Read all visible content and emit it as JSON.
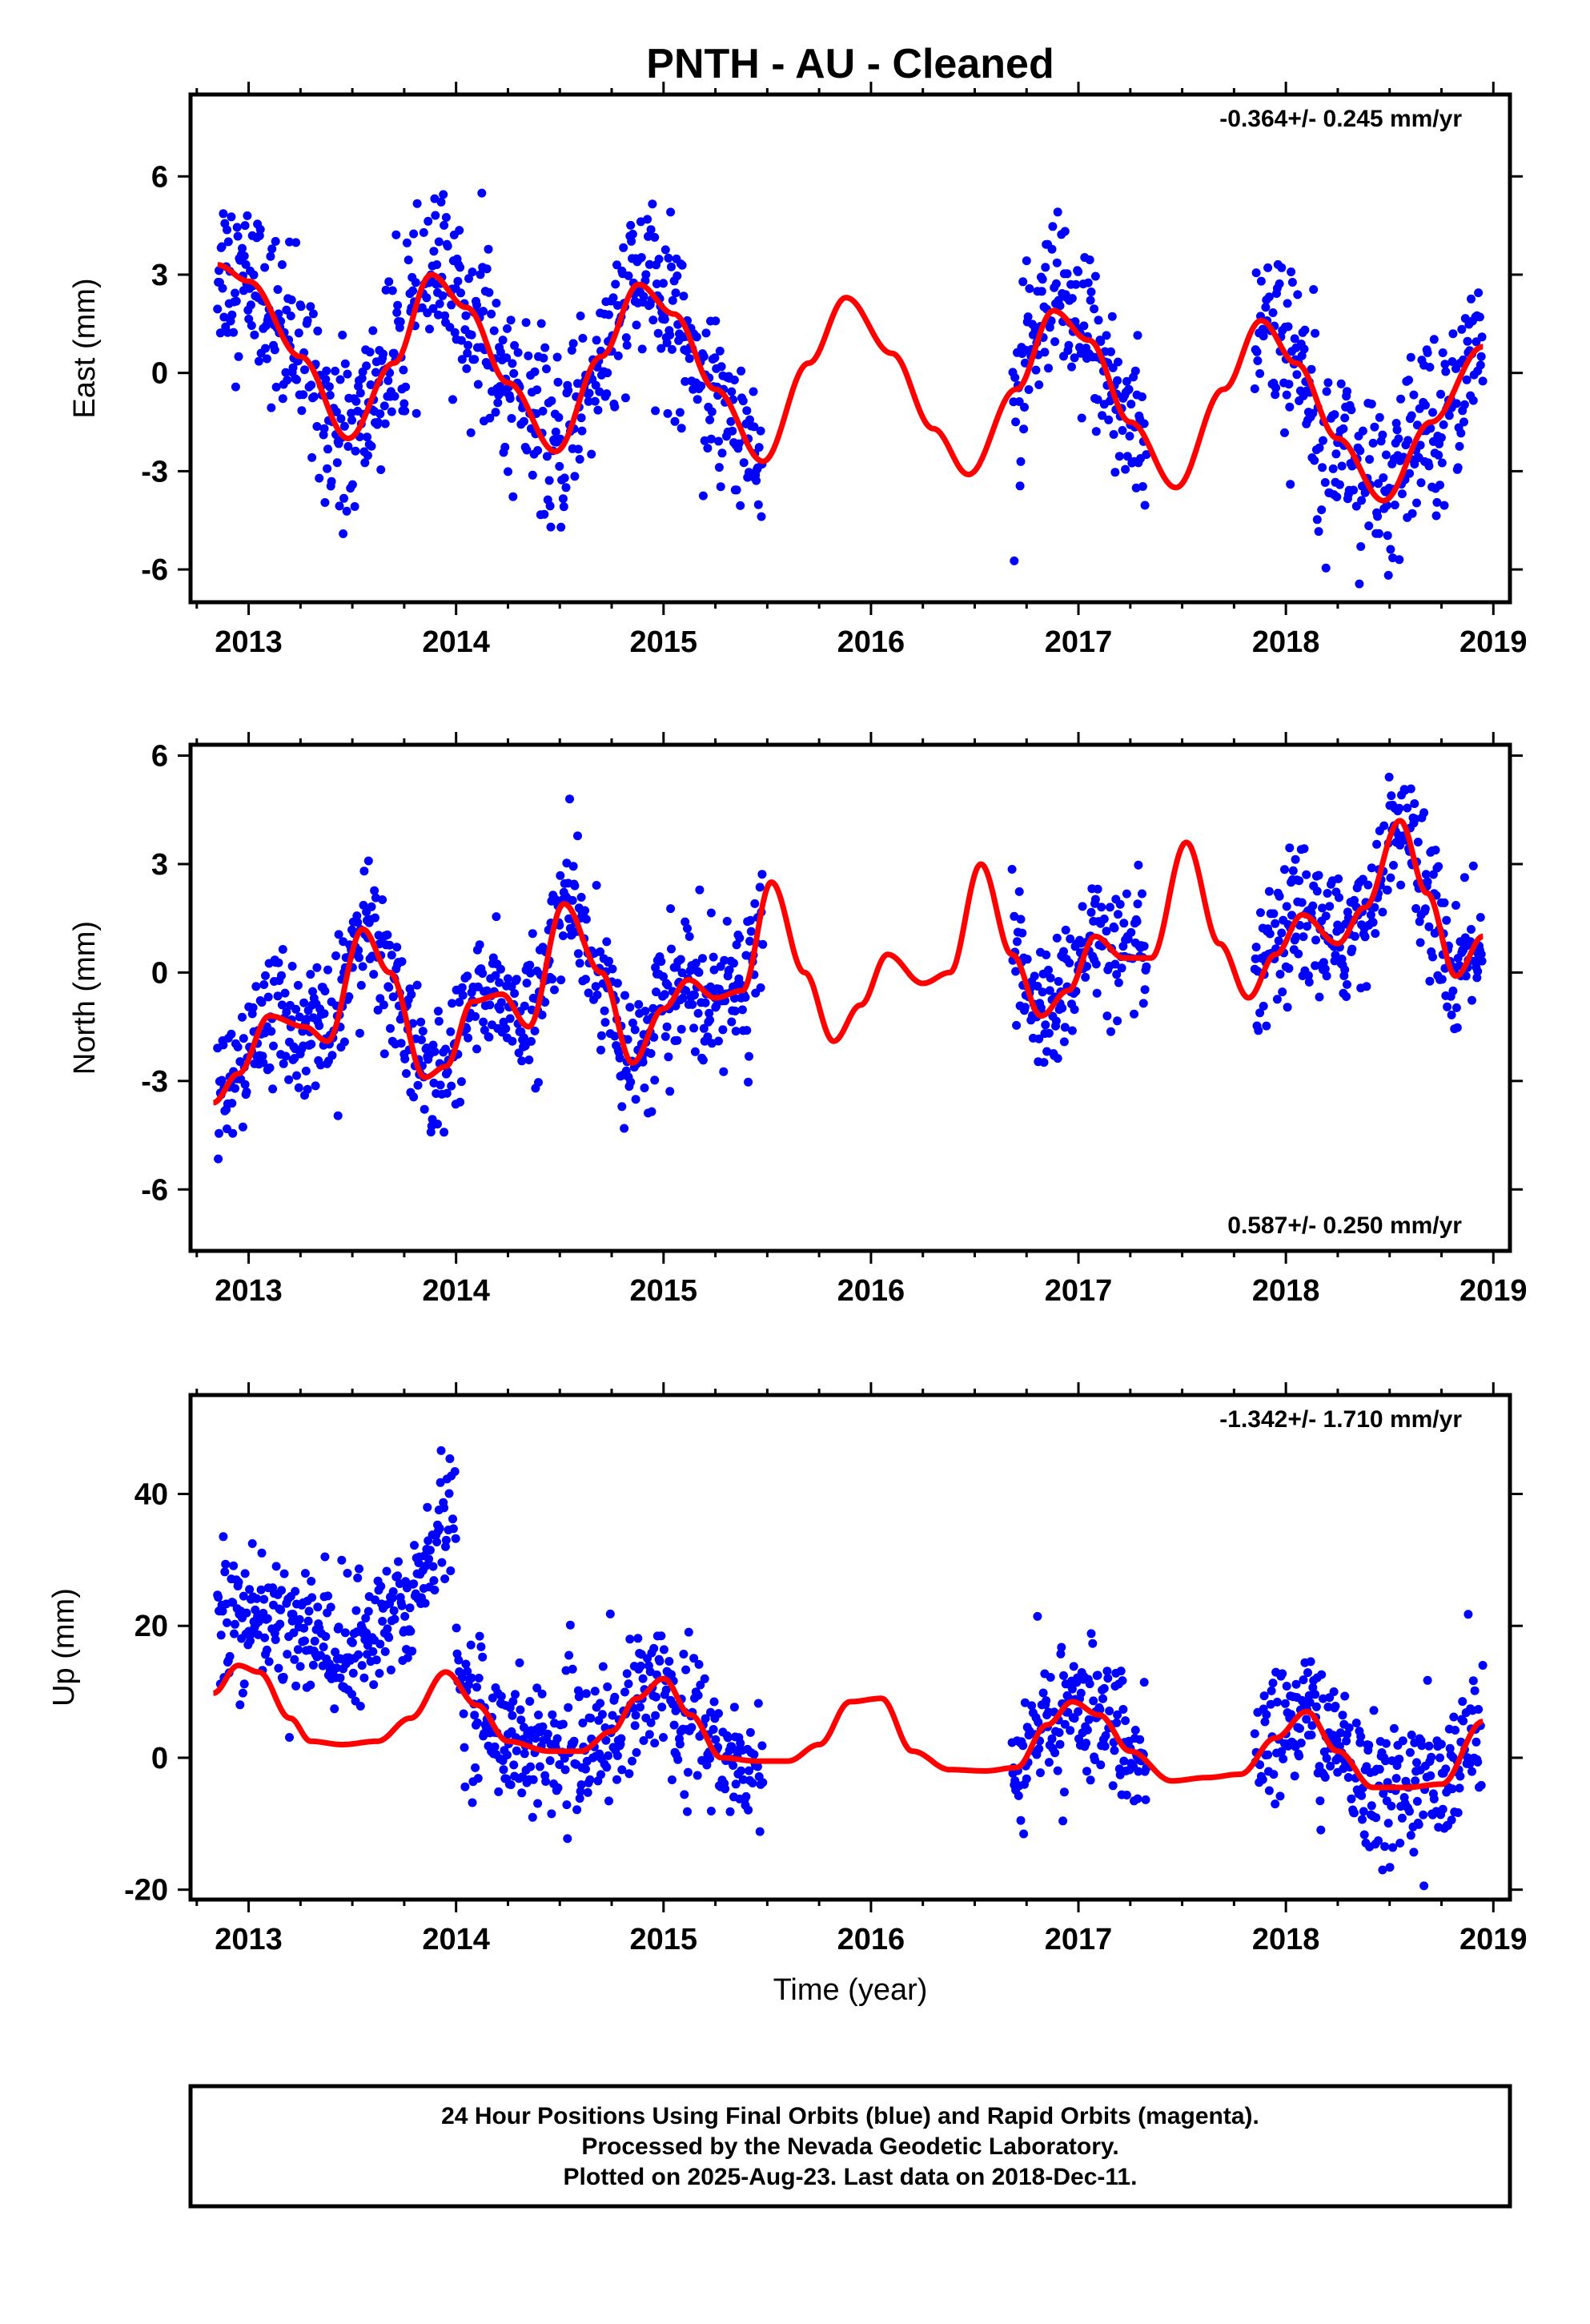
{
  "title": "PNTH  - AU - Cleaned",
  "xlabel": "Time (year)",
  "footer": {
    "line1": "24 Hour Positions Using Final Orbits (blue) and Rapid Orbits (magenta).",
    "line2": "Processed by the Nevada Geodetic Laboratory.",
    "line3": "Plotted on 2025-Aug-23. Last data on 2018-Dec-11."
  },
  "colors": {
    "points": "#0000ff",
    "fit": "#ff0000",
    "frame": "#000000"
  },
  "chart_data": [
    {
      "type": "scatter",
      "name": "east",
      "ylabel": "East (mm)",
      "rate_text": "-0.364+/- 0.245 mm/yr",
      "rate_position": "top-right",
      "xlim": [
        2012.72,
        2019.08
      ],
      "ylim": [
        -7.0,
        8.5
      ],
      "xticks": [
        "2013",
        "2014",
        "2015",
        "2016",
        "2017",
        "2018",
        "2019"
      ],
      "yticks": [
        "-6",
        "-3",
        "0",
        "3",
        "6"
      ],
      "ytick_values": [
        -6,
        -3,
        0,
        3,
        6
      ],
      "data_segments": [
        [
          2012.85,
          2015.48
        ],
        [
          2016.68,
          2017.33
        ],
        [
          2017.85,
          2018.95
        ]
      ],
      "scatter_sigma": 1.3,
      "fit_x": [
        2012.85,
        2013.0,
        2013.25,
        2013.48,
        2013.7,
        2013.88,
        2014.05,
        2014.25,
        2014.48,
        2014.7,
        2014.88,
        2015.05,
        2015.25,
        2015.48,
        2015.7,
        2015.88,
        2016.1,
        2016.3,
        2016.47,
        2016.7,
        2016.88,
        2017.05,
        2017.25,
        2017.47,
        2017.7,
        2017.88,
        2018.05,
        2018.25,
        2018.47,
        2018.7,
        2018.95
      ],
      "fit_y": [
        3.3,
        2.8,
        0.5,
        -2.0,
        0.3,
        3.0,
        2.0,
        -0.3,
        -2.4,
        0.5,
        2.7,
        1.8,
        -0.5,
        -2.7,
        0.3,
        2.3,
        0.6,
        -1.7,
        -3.1,
        -0.5,
        1.9,
        1.0,
        -1.5,
        -3.5,
        -0.5,
        1.6,
        0.3,
        -2.0,
        -3.9,
        -1.5,
        0.8
      ]
    },
    {
      "type": "scatter",
      "name": "north",
      "ylabel": "North (mm)",
      "rate_text": "0.587+/- 0.250 mm/yr",
      "rate_position": "bottom-right",
      "xlim": [
        2012.72,
        2019.08
      ],
      "ylim": [
        -7.7,
        6.3
      ],
      "xticks": [
        "2013",
        "2014",
        "2015",
        "2016",
        "2017",
        "2018",
        "2019"
      ],
      "yticks": [
        "-6",
        "-3",
        "0",
        "3",
        "6"
      ],
      "ytick_values": [
        -6,
        -3,
        0,
        3,
        6
      ],
      "data_segments": [
        [
          2012.85,
          2015.48
        ],
        [
          2016.68,
          2017.33
        ],
        [
          2017.85,
          2018.95
        ]
      ],
      "scatter_sigma": 0.9,
      "fit_x": [
        2012.83,
        2012.95,
        2013.1,
        2013.27,
        2013.38,
        2013.55,
        2013.68,
        2013.85,
        2013.95,
        2014.08,
        2014.22,
        2014.35,
        2014.52,
        2014.7,
        2014.85,
        2015.0,
        2015.12,
        2015.25,
        2015.38,
        2015.52,
        2015.68,
        2015.82,
        2015.95,
        2016.08,
        2016.25,
        2016.38,
        2016.53,
        2016.68,
        2016.82,
        2016.95,
        2017.08,
        2017.22,
        2017.35,
        2017.52,
        2017.68,
        2017.82,
        2017.95,
        2018.08,
        2018.25,
        2018.38,
        2018.55,
        2018.68,
        2018.82,
        2018.95
      ],
      "fit_y": [
        -3.6,
        -2.8,
        -1.2,
        -1.5,
        -1.9,
        1.2,
        0.0,
        -2.9,
        -2.6,
        -0.8,
        -0.6,
        -1.5,
        1.9,
        0.0,
        -2.5,
        -1.0,
        -0.2,
        -0.7,
        -0.5,
        2.5,
        0.0,
        -1.9,
        -0.9,
        0.5,
        -0.3,
        0.0,
        3.0,
        0.5,
        -1.2,
        -0.5,
        1.0,
        0.4,
        0.4,
        3.6,
        0.8,
        -0.7,
        0.5,
        1.6,
        0.8,
        1.8,
        4.2,
        2.2,
        -0.1,
        1.0
      ]
    },
    {
      "type": "scatter",
      "name": "up",
      "ylabel": "Up (mm)",
      "rate_text": "-1.342+/- 1.710 mm/yr",
      "rate_position": "top-right",
      "xlim": [
        2012.72,
        2019.08
      ],
      "ylim": [
        -21.5,
        55.0
      ],
      "xticks": [
        "2013",
        "2014",
        "2015",
        "2016",
        "2017",
        "2018",
        "2019"
      ],
      "yticks": [
        "-20",
        "0",
        "20",
        "40"
      ],
      "ytick_values": [
        -20,
        0,
        20,
        40
      ],
      "data_segments": [
        [
          2012.85,
          2015.48
        ],
        [
          2016.68,
          2017.33
        ],
        [
          2017.85,
          2018.95
        ]
      ],
      "scatter_sigma": 5.0,
      "up_anomaly": {
        "x_range": [
          2012.85,
          2014.0
        ],
        "points": [
          [
            2012.85,
            21
          ],
          [
            2013.2,
            20
          ],
          [
            2013.5,
            16
          ],
          [
            2013.75,
            22
          ],
          [
            2013.9,
            33
          ],
          [
            2014.0,
            40
          ]
        ]
      },
      "fit_x": [
        2012.83,
        2012.95,
        2013.05,
        2013.2,
        2013.3,
        2013.45,
        2013.62,
        2013.78,
        2013.95,
        2014.1,
        2014.25,
        2014.45,
        2014.6,
        2014.75,
        2014.87,
        2015.0,
        2015.13,
        2015.28,
        2015.45,
        2015.6,
        2015.75,
        2015.9,
        2016.05,
        2016.2,
        2016.38,
        2016.55,
        2016.7,
        2016.85,
        2016.97,
        2017.1,
        2017.25,
        2017.45,
        2017.62,
        2017.78,
        2017.95,
        2018.1,
        2018.25,
        2018.42,
        2018.58,
        2018.75,
        2018.95
      ],
      "fit_y": [
        9.8,
        14.0,
        13.0,
        6.0,
        2.5,
        2.0,
        2.5,
        6.0,
        13.0,
        8.0,
        2.5,
        1.0,
        1.0,
        4.0,
        9.0,
        12.0,
        6.5,
        0.0,
        -0.5,
        -0.5,
        2.0,
        8.5,
        9.0,
        1.0,
        -1.8,
        -2.0,
        -1.5,
        5.0,
        8.5,
        6.5,
        1.0,
        -3.5,
        -3.0,
        -2.5,
        3.0,
        7.0,
        1.0,
        -4.5,
        -4.5,
        -4.0,
        5.5
      ]
    }
  ]
}
